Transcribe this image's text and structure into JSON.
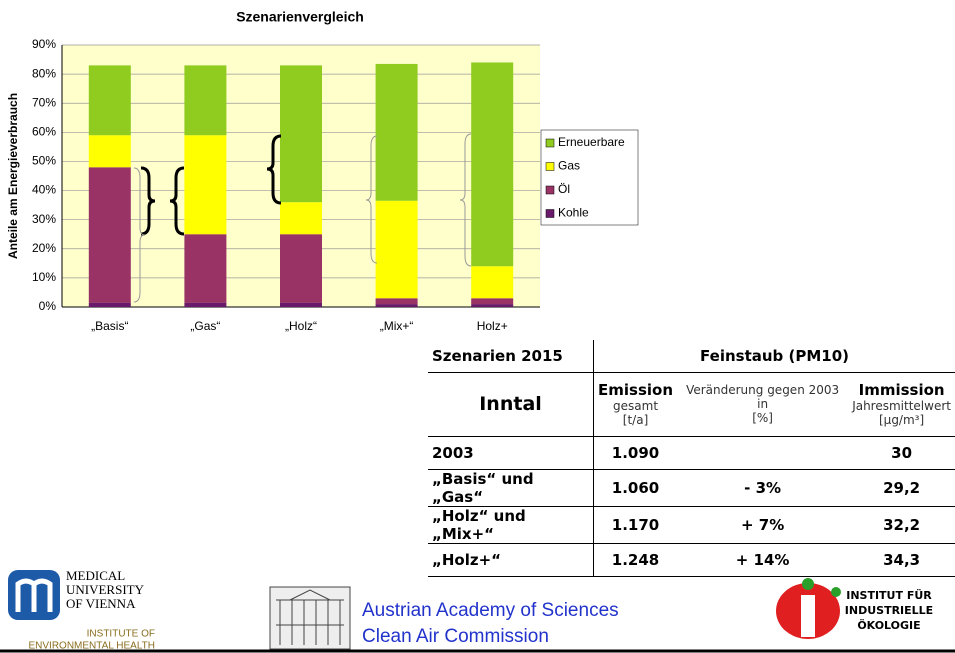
{
  "chart_data": {
    "type": "stacked-bar",
    "title": "Szenarienvergleich",
    "y_label": "Anteile am Energieverbrauch",
    "categories": [
      "„Basis“",
      "„Gas“",
      "„Holz“",
      "„Mix+“",
      "Holz+"
    ],
    "series": [
      {
        "name": "Kohle",
        "color": "#6a1a6a",
        "values": [
          1.5,
          1.5,
          1.5,
          1,
          1
        ]
      },
      {
        "name": "Öl",
        "color": "#993366",
        "values": [
          46.5,
          23.5,
          23.5,
          2,
          2
        ]
      },
      {
        "name": "Gas",
        "color": "#ffff00",
        "values": [
          11,
          34,
          11,
          33.5,
          11
        ]
      },
      {
        "name": "Erneuerbare",
        "color": "#8fcc1f",
        "values": [
          24,
          24,
          47,
          47,
          70
        ]
      }
    ],
    "ylim": [
      0,
      90
    ],
    "yticks": [
      {
        "value": 0,
        "label": "0%"
      },
      {
        "value": 10,
        "label": "10%"
      },
      {
        "value": 20,
        "label": "20%"
      },
      {
        "value": 30,
        "label": "30%"
      },
      {
        "value": 40,
        "label": "40%"
      },
      {
        "value": 50,
        "label": "50%"
      },
      {
        "value": 60,
        "label": "60%"
      },
      {
        "value": 70,
        "label": "70%"
      },
      {
        "value": 80,
        "label": "80%"
      },
      {
        "value": 90,
        "label": "90%"
      }
    ],
    "grid": true,
    "legend": "right",
    "plot_background": "#ffffcc"
  },
  "table": {
    "caption": "Szenarien 2015",
    "group": "Feinstaub (PM10)",
    "region": "Inntal",
    "columns": [
      {
        "title": "Emission",
        "sub": "gesamt",
        "unit": "[t/a]"
      },
      {
        "sub": "Veränderung gegen 2003 in",
        "unit": "[%]"
      },
      {
        "title": "Immission",
        "sub": "Jahresmittelwert",
        "unit": "[µg/m³]"
      }
    ],
    "rows": [
      [
        "2003",
        "1.090",
        null,
        "30"
      ],
      [
        "„Basis“ und „Gas“",
        "1.060",
        "- 3%",
        "29,2"
      ],
      [
        "„Holz“ und „Mix+“",
        "1.170",
        "+ 7%",
        "32,2"
      ],
      [
        "„Holz+“",
        "1.248",
        "+ 14%",
        "34,3"
      ]
    ]
  },
  "footer": {
    "uni": [
      "MEDICAL",
      "UNIVERSITY",
      "OF VIENNA"
    ],
    "institute": [
      "INSTITUTE OF",
      "ENVIRONMENTAL HEALTH"
    ],
    "academy": [
      "Austrian Academy of Sciences",
      "Clean Air Commission"
    ],
    "iio": [
      "INSTITUT FÜR",
      "INDUSTRIELLE",
      "ÖKOLOGIE"
    ]
  }
}
